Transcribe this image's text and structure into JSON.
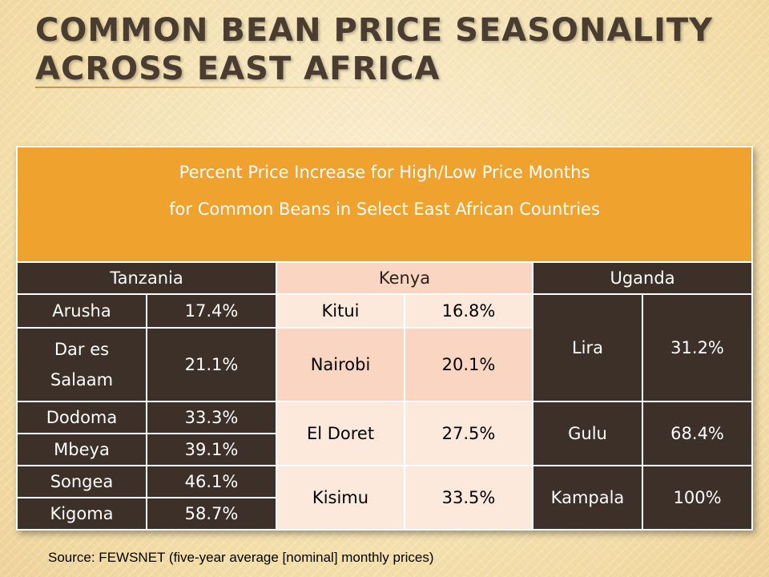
{
  "title": "Common Bean Price Seasonality Across East Africa",
  "table": {
    "header_line1": "Percent Price Increase for High/Low Price Months",
    "header_line2": "for Common Beans in Select East African Countries",
    "countries": [
      "Tanzania",
      "Kenya",
      "Uganda"
    ],
    "tanzania": [
      {
        "city": "Arusha",
        "value": "17.4%"
      },
      {
        "city_line1": "Dar es",
        "city_line2": "Salaam",
        "value": "21.1%"
      },
      {
        "city": "Dodoma",
        "value": "33.3%"
      },
      {
        "city": "Mbeya",
        "value": "39.1%"
      },
      {
        "city": "Songea",
        "value": "46.1%"
      },
      {
        "city": "Kigoma",
        "value": "58.7%"
      }
    ],
    "kenya": [
      {
        "city": "Kitui",
        "value": "16.8%"
      },
      {
        "city": "Nairobi",
        "value": "20.1%"
      },
      {
        "city": "El Doret",
        "value": "27.5%"
      },
      {
        "city": "Kisimu",
        "value": "33.5%"
      }
    ],
    "uganda": [
      {
        "city": "Lira",
        "value": "31.2%"
      },
      {
        "city": "Gulu",
        "value": "68.4%"
      },
      {
        "city": "Kampala",
        "value": "100%"
      }
    ]
  },
  "source": "Source: FEWSNET (five-year average [nominal] monthly prices)",
  "colors": {
    "header_orange": "#f0a22f",
    "dark_brown": "#3d3029",
    "light_pink": "#fde8dc",
    "pink": "#f9d5c2"
  }
}
